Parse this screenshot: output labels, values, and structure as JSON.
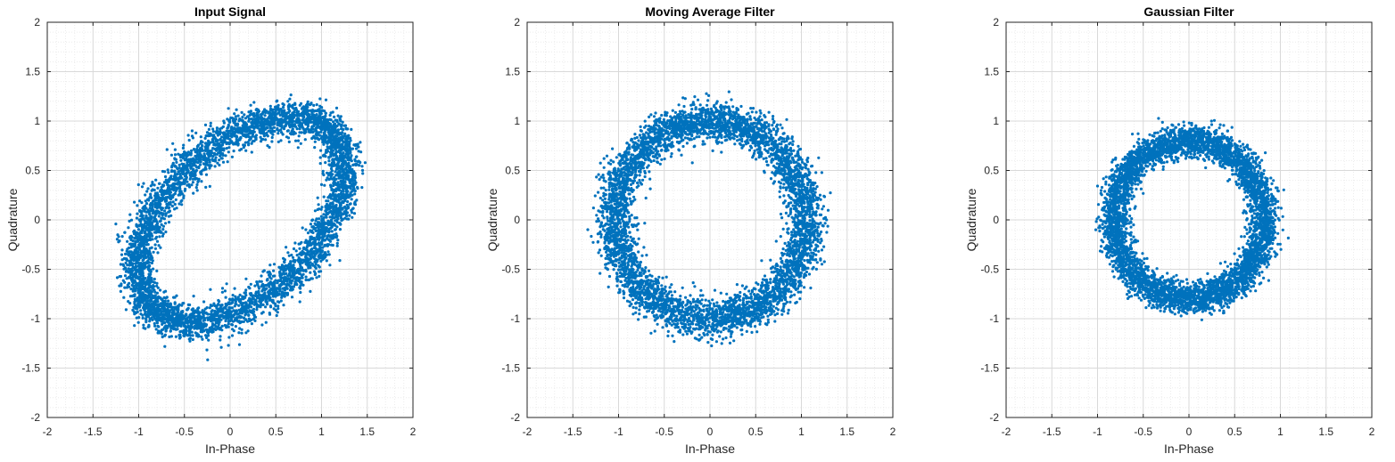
{
  "colors": {
    "marker": "#0072BD",
    "grid": "#d9d9d9",
    "axis": "#262626"
  },
  "chart_data": [
    {
      "type": "scatter",
      "title": "Input Signal",
      "xlabel": "In-Phase",
      "ylabel": "Quadrature",
      "xlim": [
        -2,
        2
      ],
      "ylim": [
        -2,
        2
      ],
      "grid": true,
      "minor_grid": true,
      "xticks": [
        "-2",
        "-1.5",
        "-1",
        "-0.5",
        "0",
        "0.5",
        "1",
        "1.5",
        "2"
      ],
      "yticks": [
        "-2",
        "-1.5",
        "-1",
        "-0.5",
        "0",
        "0.5",
        "1",
        "1.5",
        "2"
      ],
      "shape": {
        "kind": "ellipse-ring",
        "center": [
          0.12,
          0.0
        ],
        "semi_major": 1.32,
        "semi_minor": 0.78,
        "rotation_deg": 40,
        "spread": 0.09,
        "count": 5000
      }
    },
    {
      "type": "scatter",
      "title": "Moving Average Filter",
      "xlabel": "In-Phase",
      "ylabel": "Quadrature",
      "xlim": [
        -2,
        2
      ],
      "ylim": [
        -2,
        2
      ],
      "grid": true,
      "minor_grid": true,
      "xticks": [
        "-2",
        "-1.5",
        "-1",
        "-0.5",
        "0",
        "0.5",
        "1",
        "1.5",
        "2"
      ],
      "yticks": [
        "-2",
        "-1.5",
        "-1",
        "-0.5",
        "0",
        "0.5",
        "1",
        "1.5",
        "2"
      ],
      "shape": {
        "kind": "ellipse-ring",
        "center": [
          0.0,
          0.0
        ],
        "semi_major": 1.05,
        "semi_minor": 1.0,
        "rotation_deg": 0,
        "spread": 0.1,
        "count": 5000
      }
    },
    {
      "type": "scatter",
      "title": "Gaussian Filter",
      "xlabel": "In-Phase",
      "ylabel": "Quadrature",
      "xlim": [
        -2,
        2
      ],
      "ylim": [
        -2,
        2
      ],
      "grid": true,
      "minor_grid": true,
      "xticks": [
        "-2",
        "-1.5",
        "-1",
        "-0.5",
        "0",
        "0.5",
        "1",
        "1.5",
        "2"
      ],
      "yticks": [
        "-2",
        "-1.5",
        "-1",
        "-0.5",
        "0",
        "0.5",
        "1",
        "1.5",
        "2"
      ],
      "shape": {
        "kind": "ellipse-ring",
        "center": [
          0.0,
          0.0
        ],
        "semi_major": 0.82,
        "semi_minor": 0.8,
        "rotation_deg": 0,
        "spread": 0.08,
        "count": 5000
      }
    }
  ]
}
